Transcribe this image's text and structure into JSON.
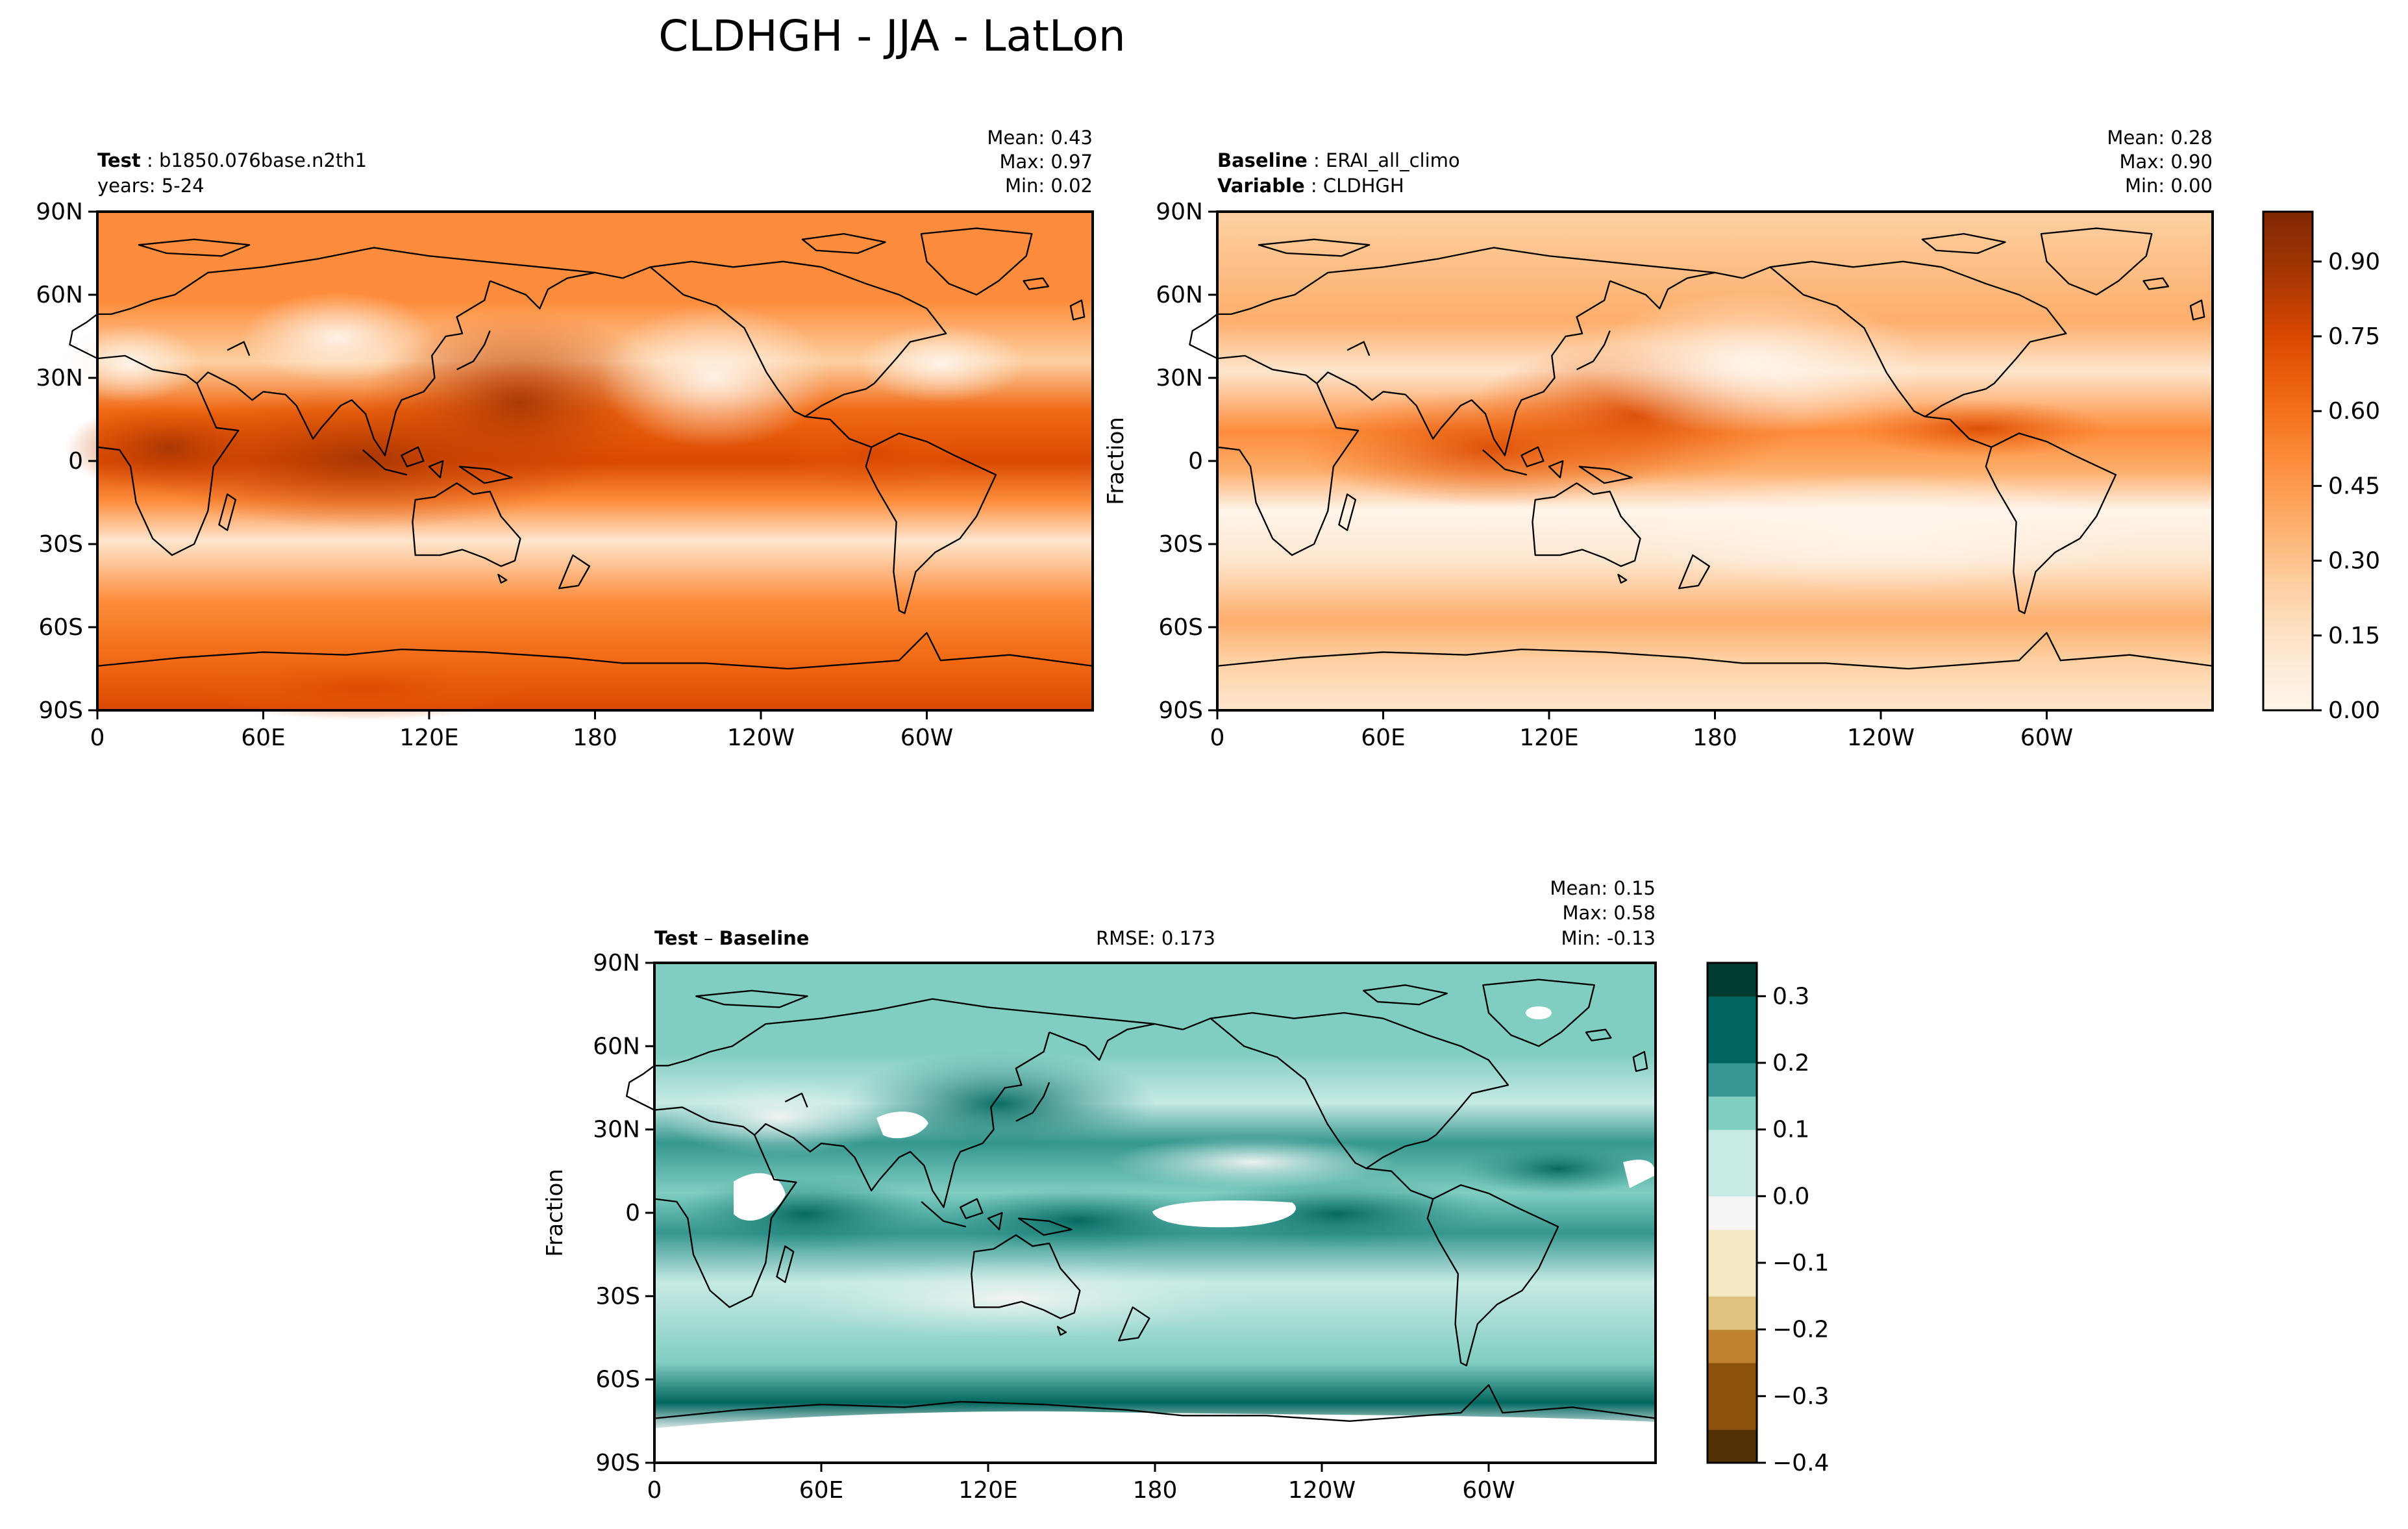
{
  "figure": {
    "title": "CLDHGH - JJA - LatLon"
  },
  "colors": {
    "oranges": [
      "#fff5eb",
      "#fee6ce",
      "#fdd0a2",
      "#fdae6b",
      "#fd8d3c",
      "#f16913",
      "#d94801",
      "#a63603",
      "#7f2704"
    ],
    "brbg": [
      "#543005",
      "#8c510a",
      "#bf812d",
      "#dfc27d",
      "#f6e8c3",
      "#f5f5f5",
      "#c7eae5",
      "#80cdc1",
      "#35978f",
      "#01665e",
      "#003c30"
    ],
    "coast": "#000000",
    "frame": "#000000"
  },
  "chart_data": [
    {
      "type": "heatmap",
      "panel": "test",
      "id_label": "Test",
      "id_value": "b1850.076base.n2th1",
      "sub_label": "years: 5-24",
      "stats": [
        "Mean:  0.43",
        "Max:  0.97",
        "Min:  0.02"
      ],
      "mean": 0.43,
      "max": 0.97,
      "min": 0.02,
      "ylabel": "",
      "xticks": [
        "0",
        "60E",
        "120E",
        "180",
        "120W",
        "60W"
      ],
      "yticks": [
        "90N",
        "60N",
        "30N",
        "0",
        "30S",
        "60S",
        "90S"
      ],
      "xlim": [
        0,
        360
      ],
      "ylim": [
        -90,
        90
      ],
      "colormap": "oranges",
      "vmin": 0.0,
      "vmax": 1.0
    },
    {
      "type": "heatmap",
      "panel": "baseline",
      "id_label": "Baseline",
      "id_value": "ERAI_all_climo",
      "var_label": "Variable",
      "var_value": "CLDHGH",
      "stats": [
        "Mean:  0.28",
        "Max:  0.90",
        "Min:  0.00"
      ],
      "mean": 0.28,
      "max": 0.9,
      "min": 0.0,
      "ylabel": "Fraction",
      "xticks": [
        "0",
        "60E",
        "120E",
        "180",
        "120W",
        "60W"
      ],
      "yticks": [
        "90N",
        "60N",
        "30N",
        "0",
        "30S",
        "60S",
        "90S"
      ],
      "xlim": [
        0,
        360
      ],
      "ylim": [
        -90,
        90
      ],
      "colormap": "oranges",
      "vmin": 0.0,
      "vmax": 1.0,
      "colorbar_ticks": [
        "0.00",
        "0.15",
        "0.30",
        "0.45",
        "0.60",
        "0.75",
        "0.90"
      ],
      "colorbar_values": [
        0.0,
        0.15,
        0.3,
        0.45,
        0.6,
        0.75,
        0.9
      ]
    },
    {
      "type": "heatmap",
      "panel": "difference",
      "id_label": "Test",
      "id_sep": " – ",
      "id_label2": "Baseline",
      "rmse_text": "RMSE: 0.173",
      "rmse": 0.173,
      "stats": [
        "Mean:  0.15",
        "Max:  0.58",
        "Min: -0.13"
      ],
      "mean": 0.15,
      "max": 0.58,
      "min": -0.13,
      "ylabel": "Fraction",
      "xticks": [
        "0",
        "60E",
        "120E",
        "180",
        "120W",
        "60W"
      ],
      "yticks": [
        "90N",
        "60N",
        "30N",
        "0",
        "30S",
        "60S",
        "90S"
      ],
      "xlim": [
        0,
        360
      ],
      "ylim": [
        -90,
        90
      ],
      "colormap": "brbg",
      "vmin": -0.4,
      "vmax": 0.35,
      "colorbar_ticks": [
        "0.3",
        "0.2",
        "0.1",
        "0.0",
        "−0.1",
        "−0.2",
        "−0.3",
        "−0.4"
      ],
      "colorbar_values": [
        0.3,
        0.2,
        0.1,
        0.0,
        -0.1,
        -0.2,
        -0.3,
        -0.4
      ]
    }
  ]
}
